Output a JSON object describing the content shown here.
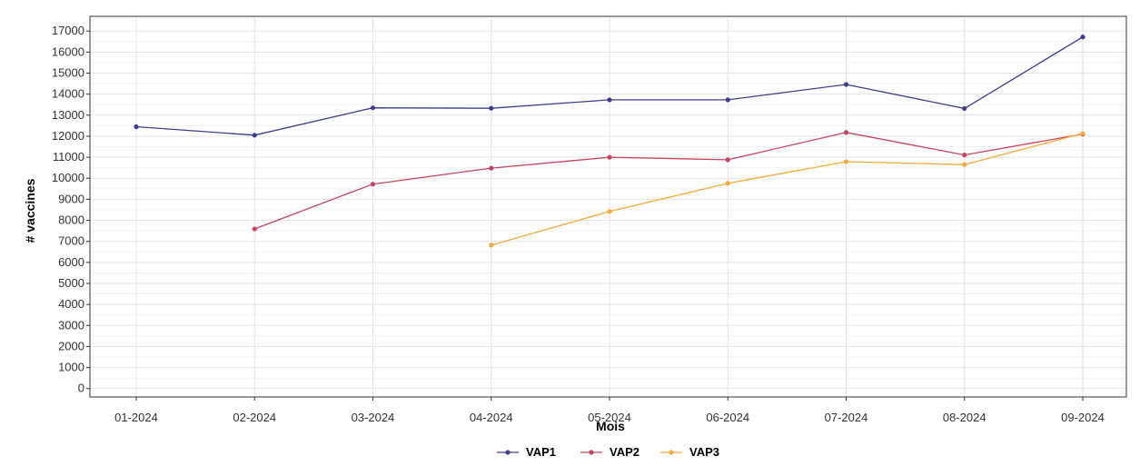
{
  "chart_data": {
    "type": "line",
    "title": "",
    "xlabel": "Mois",
    "ylabel": "# vaccines",
    "categories": [
      "01-2024",
      "02-2024",
      "03-2024",
      "04-2024",
      "05-2024",
      "06-2024",
      "07-2024",
      "08-2024",
      "09-2024"
    ],
    "y_ticks": [
      0,
      1000,
      2000,
      3000,
      4000,
      5000,
      6000,
      7000,
      8000,
      9000,
      10000,
      11000,
      12000,
      13000,
      14000,
      15000,
      16000,
      17000
    ],
    "ylim": [
      -400,
      17700
    ],
    "grid": true,
    "legend_position": "bottom",
    "series": [
      {
        "name": "VAP1",
        "color": "#3d3e8f",
        "values": [
          12450,
          12050,
          13350,
          13330,
          13730,
          13730,
          14460,
          13320,
          16720
        ]
      },
      {
        "name": "VAP2",
        "color": "#c8435f",
        "values": [
          null,
          7590,
          9720,
          10480,
          11000,
          10880,
          12180,
          11110,
          12100
        ]
      },
      {
        "name": "VAP3",
        "color": "#f5aa3b",
        "values": [
          null,
          null,
          null,
          6820,
          8420,
          9760,
          10790,
          10650,
          12130
        ]
      }
    ]
  }
}
